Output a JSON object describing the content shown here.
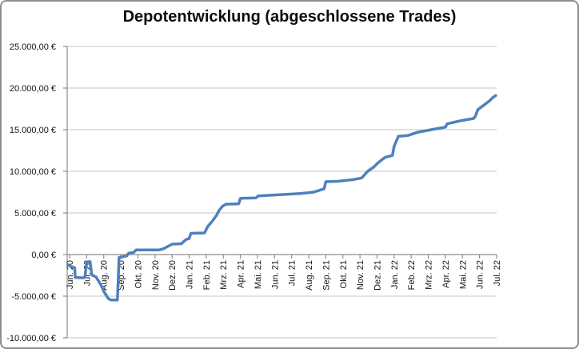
{
  "title": "Depotentwicklung (abgeschlossene Trades)",
  "chart_data": {
    "type": "line",
    "title": "Depotentwicklung (abgeschlossene Trades)",
    "legend": "none",
    "grid": "horizontal",
    "currency_format": "de-DE EUR",
    "line_color": "#4F81BD",
    "axis_color": "#8e8e8e",
    "gridline_color": "#c4c4c4",
    "ylim": [
      -10000,
      25000
    ],
    "y_ticks": [
      {
        "value": 25000,
        "label": "25.000,00 €"
      },
      {
        "value": 20000,
        "label": "20.000,00 €"
      },
      {
        "value": 15000,
        "label": "15.000,00 €"
      },
      {
        "value": 10000,
        "label": "10.000,00 €"
      },
      {
        "value": 5000,
        "label": "5.000,00 €"
      },
      {
        "value": 0,
        "label": "0,00 €"
      },
      {
        "value": -5000,
        "label": "-5.000,00 €"
      },
      {
        "value": -10000,
        "label": "-10.000,00 €"
      }
    ],
    "x_tick_labels": [
      "Jun. 20",
      "Jul. 20",
      "Aug. 20",
      "Sep. 20",
      "Okt. 20",
      "Nov. 20",
      "Dez. 20",
      "Jan. 21",
      "Feb. 21",
      "Mrz. 21",
      "Apr. 21",
      "Mai. 21",
      "Jun. 21",
      "Jul. 21",
      "Aug. 21",
      "Sep. 21",
      "Okt. 21",
      "Nov. 21",
      "Dez. 21",
      "Jan. 22",
      "Feb. 22",
      "Mrz. 22",
      "Apr. 22",
      "Mai. 22",
      "Jun. 22",
      "Jul. 22"
    ],
    "series": [
      {
        "name": "Depotentwicklung (abgeschlossene Trades)",
        "x_unit": "month_index_from_Jun_2020",
        "y_unit": "EUR",
        "points": [
          [
            -0.1,
            -1250
          ],
          [
            0.15,
            -1500
          ],
          [
            0.3,
            -1600
          ],
          [
            0.33,
            -2750
          ],
          [
            0.8,
            -2800
          ],
          [
            0.9,
            -2750
          ],
          [
            1.0,
            -900
          ],
          [
            1.2,
            -850
          ],
          [
            1.3,
            -2450
          ],
          [
            1.55,
            -2700
          ],
          [
            1.85,
            -3700
          ],
          [
            2.0,
            -4400
          ],
          [
            2.25,
            -5250
          ],
          [
            2.4,
            -5450
          ],
          [
            2.8,
            -5450
          ],
          [
            2.9,
            -350
          ],
          [
            3.15,
            -250
          ],
          [
            3.35,
            -150
          ],
          [
            3.45,
            150
          ],
          [
            3.75,
            250
          ],
          [
            3.9,
            550
          ],
          [
            5.25,
            550
          ],
          [
            5.5,
            700
          ],
          [
            6.0,
            1250
          ],
          [
            6.55,
            1300
          ],
          [
            6.7,
            1600
          ],
          [
            6.85,
            1850
          ],
          [
            7.0,
            1900
          ],
          [
            7.1,
            2550
          ],
          [
            7.9,
            2600
          ],
          [
            8.1,
            3400
          ],
          [
            8.35,
            4000
          ],
          [
            8.6,
            4700
          ],
          [
            8.75,
            5300
          ],
          [
            8.95,
            5800
          ],
          [
            9.15,
            6050
          ],
          [
            9.9,
            6100
          ],
          [
            10.0,
            6750
          ],
          [
            10.9,
            6800
          ],
          [
            11.05,
            7050
          ],
          [
            12.4,
            7200
          ],
          [
            13.6,
            7350
          ],
          [
            14.3,
            7500
          ],
          [
            14.9,
            7900
          ],
          [
            15.0,
            8750
          ],
          [
            15.7,
            8800
          ],
          [
            16.6,
            9000
          ],
          [
            17.1,
            9200
          ],
          [
            17.45,
            10000
          ],
          [
            17.8,
            10500
          ],
          [
            18.05,
            11000
          ],
          [
            18.35,
            11500
          ],
          [
            18.5,
            11700
          ],
          [
            18.9,
            11900
          ],
          [
            19.0,
            13000
          ],
          [
            19.1,
            13500
          ],
          [
            19.25,
            14200
          ],
          [
            19.8,
            14300
          ],
          [
            20.4,
            14700
          ],
          [
            21.3,
            15050
          ],
          [
            22.0,
            15300
          ],
          [
            22.1,
            15700
          ],
          [
            22.95,
            16100
          ],
          [
            23.65,
            16350
          ],
          [
            23.75,
            16600
          ],
          [
            23.9,
            17400
          ],
          [
            24.35,
            18100
          ],
          [
            24.6,
            18500
          ],
          [
            24.8,
            18900
          ],
          [
            24.95,
            19100
          ]
        ]
      }
    ]
  }
}
